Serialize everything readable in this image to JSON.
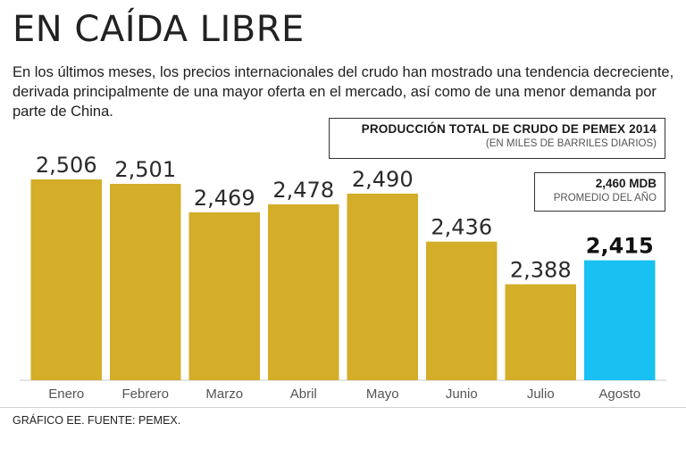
{
  "header": {
    "title": "EN CAÍDA LIBRE",
    "subtitle": "En los últimos meses, los precios internacionales del crudo han mostrado una tendencia decreciente, derivada principalmente de una mayor oferta en el mercado, así como de una menor demanda por parte de China."
  },
  "legend": {
    "main_title": "PRODUCCIÓN TOTAL DE CRUDO DE PEMEX 2014",
    "main_unit": "(EN MILES DE BARRILES DIARIOS)",
    "avg_value": "2,460 MDB",
    "avg_label": "PROMEDIO DEL AÑO"
  },
  "footer": {
    "source": "GRÁFICO EE. FUENTE: PEMEX."
  },
  "colors": {
    "bar": "#d4ad29",
    "highlight": "#19c0f2",
    "axis": "#c8c8c8"
  },
  "chart_data": {
    "type": "bar",
    "title": "PRODUCCIÓN TOTAL DE CRUDO DE PEMEX 2014",
    "ylabel": "(EN MILES DE BARRILES DIARIOS)",
    "xlabel": "",
    "categories": [
      "Enero",
      "Febrero",
      "Marzo",
      "Abril",
      "Mayo",
      "Junio",
      "Julio",
      "Agosto"
    ],
    "values": [
      2506,
      2501,
      2469,
      2478,
      2490,
      2436,
      2388,
      2415
    ],
    "value_labels": [
      "2,506",
      "2,501",
      "2,469",
      "2,478",
      "2,490",
      "2,436",
      "2,388",
      "2,415"
    ],
    "highlight_index": 7,
    "ylim": [
      2280,
      2510
    ],
    "grid": false,
    "annotation": "2,460 MDB PROMEDIO DEL AÑO"
  }
}
